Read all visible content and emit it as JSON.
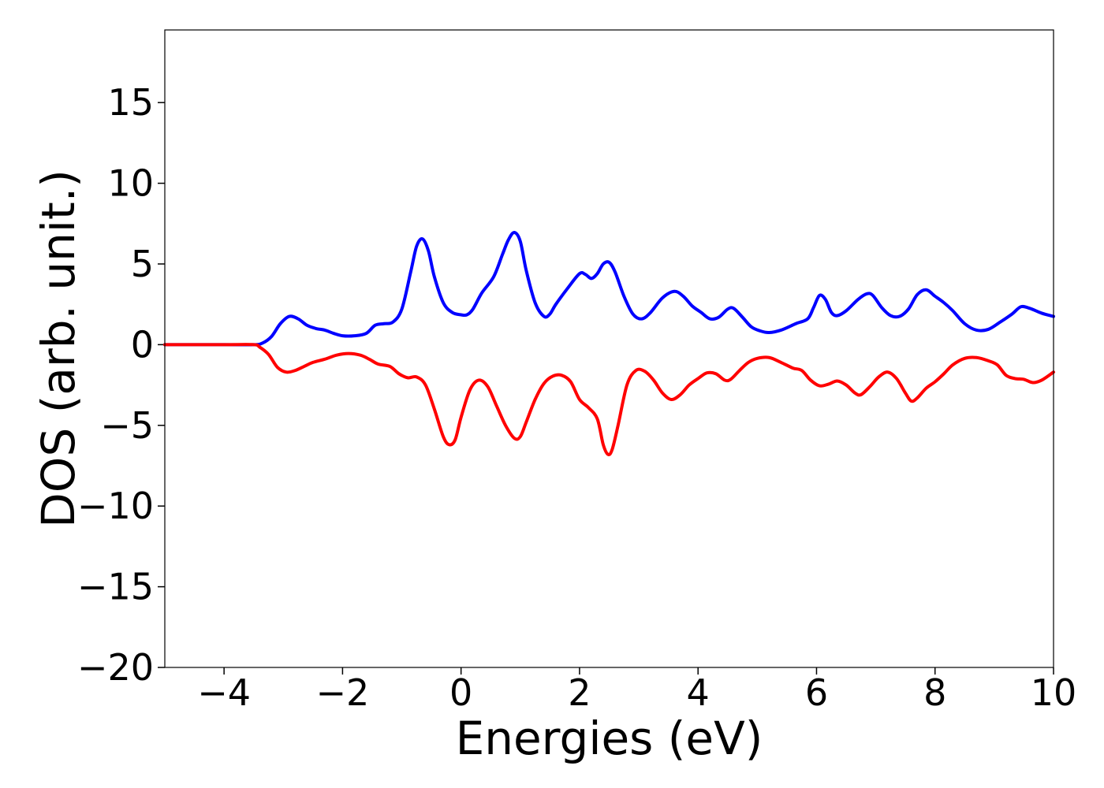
{
  "chart_data": {
    "type": "line",
    "title": "",
    "xlabel": "Energies (eV)",
    "ylabel": "DOS (arb. unit.)",
    "xlim": [
      -5,
      10
    ],
    "ylim": [
      -20,
      19.5
    ],
    "xticks": [
      -4,
      -2,
      0,
      2,
      4,
      6,
      8,
      10
    ],
    "yticks": [
      -20,
      -15,
      -10,
      -5,
      0,
      5,
      10,
      15
    ],
    "xtick_labels": [
      "−4",
      "−2",
      "0",
      "2",
      "4",
      "6",
      "8",
      "10"
    ],
    "ytick_labels": [
      "−20",
      "−15",
      "−10",
      "−5",
      "0",
      "5",
      "10",
      "15"
    ],
    "grid": false,
    "legend": "none",
    "series": [
      {
        "color": "#0000ff",
        "points": [
          [
            -5.0,
            0.0
          ],
          [
            -4.0,
            0.0
          ],
          [
            -3.5,
            0.0
          ],
          [
            -3.35,
            0.1
          ],
          [
            -3.2,
            0.5
          ],
          [
            -3.05,
            1.3
          ],
          [
            -2.9,
            1.75
          ],
          [
            -2.75,
            1.6
          ],
          [
            -2.6,
            1.2
          ],
          [
            -2.45,
            1.0
          ],
          [
            -2.3,
            0.9
          ],
          [
            -2.15,
            0.7
          ],
          [
            -2.0,
            0.55
          ],
          [
            -1.8,
            0.55
          ],
          [
            -1.6,
            0.7
          ],
          [
            -1.45,
            1.2
          ],
          [
            -1.3,
            1.3
          ],
          [
            -1.15,
            1.4
          ],
          [
            -1.0,
            2.2
          ],
          [
            -0.85,
            4.5
          ],
          [
            -0.75,
            6.1
          ],
          [
            -0.65,
            6.55
          ],
          [
            -0.55,
            5.8
          ],
          [
            -0.45,
            4.2
          ],
          [
            -0.3,
            2.6
          ],
          [
            -0.15,
            2.0
          ],
          [
            0.0,
            1.85
          ],
          [
            0.1,
            1.85
          ],
          [
            0.2,
            2.2
          ],
          [
            0.35,
            3.2
          ],
          [
            0.55,
            4.2
          ],
          [
            0.7,
            5.6
          ],
          [
            0.8,
            6.5
          ],
          [
            0.9,
            6.95
          ],
          [
            1.0,
            6.4
          ],
          [
            1.1,
            4.6
          ],
          [
            1.25,
            2.6
          ],
          [
            1.4,
            1.75
          ],
          [
            1.5,
            1.9
          ],
          [
            1.6,
            2.5
          ],
          [
            1.8,
            3.5
          ],
          [
            2.0,
            4.4
          ],
          [
            2.1,
            4.35
          ],
          [
            2.2,
            4.1
          ],
          [
            2.3,
            4.4
          ],
          [
            2.4,
            5.0
          ],
          [
            2.5,
            5.1
          ],
          [
            2.6,
            4.5
          ],
          [
            2.75,
            3.0
          ],
          [
            2.9,
            1.9
          ],
          [
            3.05,
            1.6
          ],
          [
            3.2,
            2.0
          ],
          [
            3.4,
            2.9
          ],
          [
            3.6,
            3.3
          ],
          [
            3.75,
            3.0
          ],
          [
            3.9,
            2.4
          ],
          [
            4.05,
            2.0
          ],
          [
            4.2,
            1.6
          ],
          [
            4.35,
            1.7
          ],
          [
            4.5,
            2.2
          ],
          [
            4.6,
            2.25
          ],
          [
            4.75,
            1.7
          ],
          [
            4.9,
            1.1
          ],
          [
            5.05,
            0.85
          ],
          [
            5.2,
            0.75
          ],
          [
            5.4,
            0.9
          ],
          [
            5.65,
            1.3
          ],
          [
            5.85,
            1.6
          ],
          [
            5.95,
            2.3
          ],
          [
            6.05,
            3.05
          ],
          [
            6.15,
            2.8
          ],
          [
            6.25,
            2.0
          ],
          [
            6.35,
            1.8
          ],
          [
            6.5,
            2.1
          ],
          [
            6.7,
            2.8
          ],
          [
            6.85,
            3.15
          ],
          [
            6.95,
            3.05
          ],
          [
            7.1,
            2.3
          ],
          [
            7.25,
            1.8
          ],
          [
            7.4,
            1.75
          ],
          [
            7.55,
            2.2
          ],
          [
            7.7,
            3.1
          ],
          [
            7.85,
            3.4
          ],
          [
            8.0,
            3.0
          ],
          [
            8.15,
            2.6
          ],
          [
            8.3,
            2.1
          ],
          [
            8.5,
            1.3
          ],
          [
            8.7,
            0.9
          ],
          [
            8.9,
            0.95
          ],
          [
            9.1,
            1.4
          ],
          [
            9.3,
            1.9
          ],
          [
            9.45,
            2.35
          ],
          [
            9.6,
            2.25
          ],
          [
            9.8,
            1.95
          ],
          [
            10.0,
            1.75
          ]
        ]
      },
      {
        "color": "#ff0000",
        "points": [
          [
            -5.0,
            0.0
          ],
          [
            -4.0,
            0.0
          ],
          [
            -3.5,
            0.0
          ],
          [
            -3.4,
            -0.15
          ],
          [
            -3.25,
            -0.6
          ],
          [
            -3.1,
            -1.4
          ],
          [
            -2.95,
            -1.7
          ],
          [
            -2.8,
            -1.6
          ],
          [
            -2.65,
            -1.35
          ],
          [
            -2.5,
            -1.1
          ],
          [
            -2.3,
            -0.9
          ],
          [
            -2.1,
            -0.65
          ],
          [
            -1.9,
            -0.55
          ],
          [
            -1.7,
            -0.65
          ],
          [
            -1.55,
            -0.9
          ],
          [
            -1.4,
            -1.2
          ],
          [
            -1.2,
            -1.35
          ],
          [
            -1.05,
            -1.8
          ],
          [
            -0.9,
            -2.05
          ],
          [
            -0.75,
            -2.0
          ],
          [
            -0.6,
            -2.5
          ],
          [
            -0.45,
            -4.0
          ],
          [
            -0.3,
            -5.7
          ],
          [
            -0.2,
            -6.2
          ],
          [
            -0.1,
            -5.9
          ],
          [
            0.0,
            -4.5
          ],
          [
            0.15,
            -2.8
          ],
          [
            0.3,
            -2.2
          ],
          [
            0.45,
            -2.6
          ],
          [
            0.6,
            -3.8
          ],
          [
            0.75,
            -5.0
          ],
          [
            0.9,
            -5.8
          ],
          [
            1.0,
            -5.7
          ],
          [
            1.1,
            -4.8
          ],
          [
            1.25,
            -3.4
          ],
          [
            1.4,
            -2.4
          ],
          [
            1.55,
            -1.95
          ],
          [
            1.7,
            -1.9
          ],
          [
            1.85,
            -2.3
          ],
          [
            2.0,
            -3.4
          ],
          [
            2.15,
            -3.9
          ],
          [
            2.3,
            -4.6
          ],
          [
            2.4,
            -6.2
          ],
          [
            2.48,
            -6.8
          ],
          [
            2.55,
            -6.5
          ],
          [
            2.65,
            -5.0
          ],
          [
            2.8,
            -2.5
          ],
          [
            2.95,
            -1.6
          ],
          [
            3.1,
            -1.65
          ],
          [
            3.25,
            -2.2
          ],
          [
            3.4,
            -3.0
          ],
          [
            3.55,
            -3.4
          ],
          [
            3.7,
            -3.1
          ],
          [
            3.85,
            -2.5
          ],
          [
            4.0,
            -2.1
          ],
          [
            4.15,
            -1.75
          ],
          [
            4.3,
            -1.8
          ],
          [
            4.45,
            -2.2
          ],
          [
            4.55,
            -2.15
          ],
          [
            4.7,
            -1.6
          ],
          [
            4.85,
            -1.1
          ],
          [
            5.0,
            -0.85
          ],
          [
            5.2,
            -0.8
          ],
          [
            5.4,
            -1.1
          ],
          [
            5.6,
            -1.45
          ],
          [
            5.75,
            -1.6
          ],
          [
            5.9,
            -2.2
          ],
          [
            6.05,
            -2.55
          ],
          [
            6.2,
            -2.45
          ],
          [
            6.35,
            -2.25
          ],
          [
            6.5,
            -2.5
          ],
          [
            6.65,
            -3.0
          ],
          [
            6.75,
            -3.1
          ],
          [
            6.9,
            -2.6
          ],
          [
            7.05,
            -2.0
          ],
          [
            7.2,
            -1.7
          ],
          [
            7.35,
            -2.1
          ],
          [
            7.5,
            -3.0
          ],
          [
            7.6,
            -3.5
          ],
          [
            7.7,
            -3.3
          ],
          [
            7.85,
            -2.7
          ],
          [
            8.0,
            -2.3
          ],
          [
            8.15,
            -1.8
          ],
          [
            8.3,
            -1.25
          ],
          [
            8.5,
            -0.85
          ],
          [
            8.7,
            -0.8
          ],
          [
            8.9,
            -1.0
          ],
          [
            9.05,
            -1.25
          ],
          [
            9.2,
            -1.9
          ],
          [
            9.35,
            -2.1
          ],
          [
            9.5,
            -2.15
          ],
          [
            9.65,
            -2.35
          ],
          [
            9.8,
            -2.2
          ],
          [
            10.0,
            -1.7
          ]
        ]
      }
    ]
  }
}
